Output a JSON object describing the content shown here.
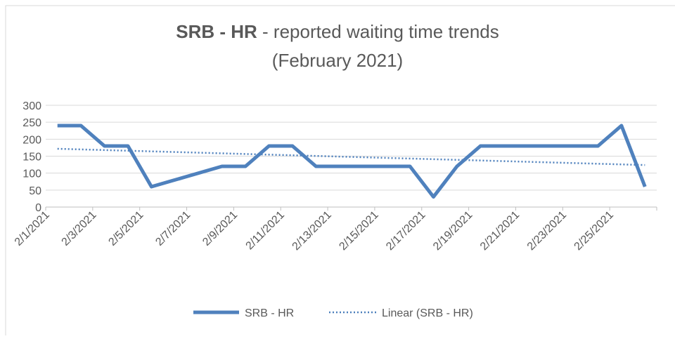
{
  "chart_data": {
    "type": "line",
    "title_bold": "SRB - HR",
    "title": " - reported waiting time trends",
    "subtitle": "(February 2021)",
    "x": [
      "2/1/2021",
      "2/2/2021",
      "2/3/2021",
      "2/4/2021",
      "2/5/2021",
      "2/8/2021",
      "2/9/2021",
      "2/10/2021",
      "2/11/2021",
      "2/12/2021",
      "2/16/2021",
      "2/17/2021",
      "2/18/2021",
      "2/19/2021",
      "2/24/2021",
      "2/25/2021",
      "2/26/2021"
    ],
    "series": [
      {
        "name": "SRB - HR",
        "color": "#4f81bd",
        "values": [
          240,
          240,
          180,
          180,
          60,
          120,
          120,
          180,
          180,
          120,
          120,
          30,
          120,
          180,
          180,
          240,
          60
        ]
      }
    ],
    "trendline": {
      "name": "Linear (SRB - HR)",
      "color": "#4f81bd"
    },
    "xticks": [
      "2/1/2021",
      "2/3/2021",
      "2/5/2021",
      "2/7/2021",
      "2/9/2021",
      "2/11/2021",
      "2/13/2021",
      "2/15/2021",
      "2/17/2021",
      "2/19/2021",
      "2/21/2021",
      "2/23/2021",
      "2/25/2021"
    ],
    "ylim": [
      0,
      300
    ],
    "yticks": [
      0,
      50,
      100,
      150,
      200,
      250,
      300
    ],
    "grid": true,
    "legend": "bottom"
  }
}
